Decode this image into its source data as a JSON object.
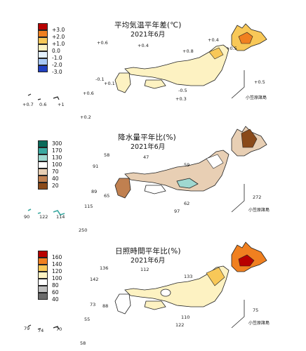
{
  "panels": [
    {
      "id": "temperature",
      "title": "平均気温平年差(℃)",
      "subtitle": "2021年6月",
      "legend": [
        {
          "label": "+3.0",
          "color": "#b80000"
        },
        {
          "label": "+2.0",
          "color": "#f08020"
        },
        {
          "label": "+1.0",
          "color": "#f8c858"
        },
        {
          "label": "0.0",
          "color": "#fdf2c2"
        },
        {
          "label": "-1.0",
          "color": "#e4f1ff"
        },
        {
          "label": "-2.0",
          "color": "#a8c8f4"
        },
        {
          "label": "-3.0",
          "color": "#2040c0"
        }
      ],
      "inset_label": "小笠原諸島",
      "values": [
        "+0.6",
        "+0.4",
        "+0.8",
        "+0.4",
        "+0.5",
        "-0.1",
        "+0.1",
        "-0.5",
        "+0.3",
        "+0.6",
        "+0.7",
        "0.6",
        "+1",
        "+0.2",
        "+0.5"
      ]
    },
    {
      "id": "precipitation",
      "title": "降水量平年比(%)",
      "subtitle": "2021年6月",
      "legend": [
        {
          "label": "300",
          "color": "#0a6a5a"
        },
        {
          "label": "170",
          "color": "#3aa8a0"
        },
        {
          "label": "130",
          "color": "#9fd8d0"
        },
        {
          "label": "100",
          "color": "#ffffff"
        },
        {
          "label": "70",
          "color": "#e8cfb4"
        },
        {
          "label": "40",
          "color": "#c08050"
        },
        {
          "label": "20",
          "color": "#8a4a1a"
        }
      ],
      "inset_label": "小笠原諸島",
      "values": [
        "58",
        "47",
        "91",
        "59",
        "62",
        "89",
        "65",
        "97",
        "90",
        "122",
        "114",
        "115",
        "272",
        "250"
      ]
    },
    {
      "id": "sunshine",
      "title": "日照時間平年比(%)",
      "subtitle": "2021年6月",
      "legend": [
        {
          "label": "160",
          "color": "#b80000"
        },
        {
          "label": "140",
          "color": "#f08020"
        },
        {
          "label": "120",
          "color": "#f8c858"
        },
        {
          "label": "100",
          "color": "#fdf2c2"
        },
        {
          "label": "80",
          "color": "#ffffff"
        },
        {
          "label": "60",
          "color": "#bdbdbd"
        },
        {
          "label": "40",
          "color": "#6a6a6a"
        }
      ],
      "inset_label": "小笠原諸島",
      "values": [
        "136",
        "112",
        "142",
        "133",
        "73",
        "88",
        "110",
        "122",
        "79",
        "74",
        "70",
        "55",
        "58",
        "75"
      ]
    }
  ]
}
